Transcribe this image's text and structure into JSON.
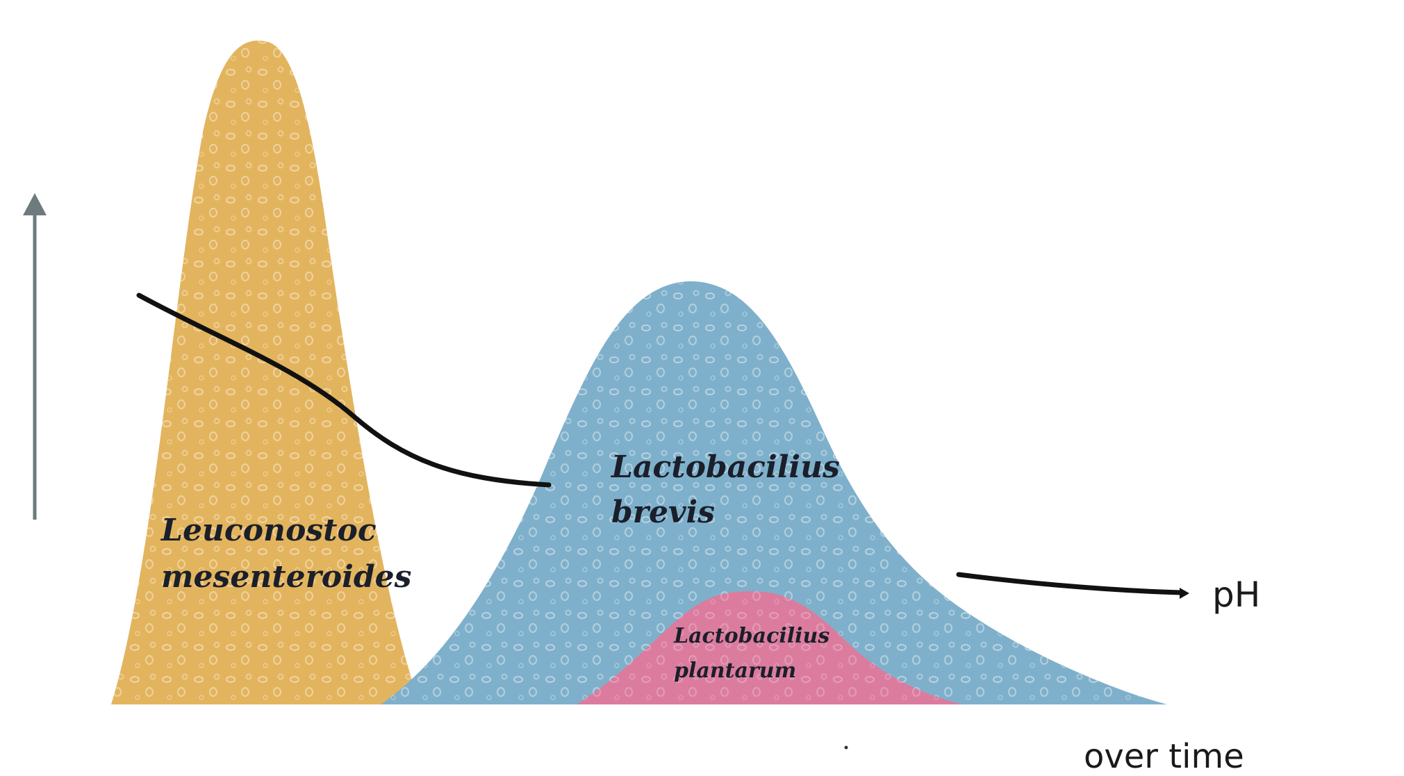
{
  "colors": {
    "leuconostoc_fill": "#E3B45E",
    "brevis_fill": "#7FB0CB",
    "plantarum_fill": "#DB7C9E",
    "ph_line": "#111111",
    "axis_arrow": "#6E7B7D"
  },
  "labels": {
    "leuconostoc_line1": "Leuconostoc",
    "leuconostoc_line2": "mesenteroides",
    "brevis_line1": "Lactobacilius",
    "brevis_line2": "brevis",
    "plantarum_line1": "Lactobacilius",
    "plantarum_line2": "plantarum",
    "ph": "pH",
    "time": "over time"
  }
}
